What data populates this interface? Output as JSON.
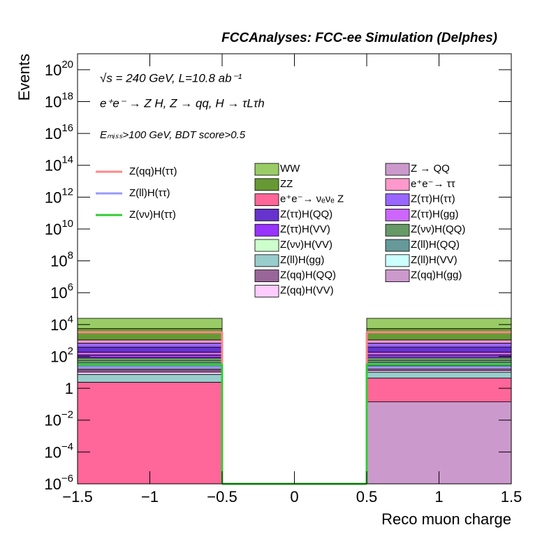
{
  "chart_data": {
    "type": "histogram",
    "title": "FCCAnalyses: FCC-ee Simulation (Delphes)",
    "x_label": "Reco muon charge",
    "y_label": "Events",
    "annotations": [
      "√s = 240 GeV, L=10.8 ab⁻¹",
      "e⁺e⁻ → Z H, Z → qq, H → τLτh",
      "Eₘᵢₛₛ>100 GeV, BDT score>0.5"
    ],
    "log_y": true,
    "bins": [
      -1.5,
      -0.5,
      0.5,
      1.5
    ],
    "xlim": [
      -1.5,
      1.5
    ],
    "xticks": [
      {
        "value": -1.5,
        "label": "−1.5"
      },
      {
        "value": -1,
        "label": "−1"
      },
      {
        "value": -0.5,
        "label": "−0.5"
      },
      0,
      0.5,
      1,
      1.5
    ],
    "ylim": [
      1e-06,
      1e+21
    ],
    "yticks": [
      {
        "value": 1e-06,
        "label": "10",
        "exponent": "−6"
      },
      {
        "value": 0.0001,
        "label": "10",
        "exponent": "−4"
      },
      {
        "value": 0.01,
        "label": "10",
        "exponent": "−2"
      },
      1,
      {
        "value": 100,
        "label": "10",
        "exponent": "2"
      },
      {
        "value": 10000.0,
        "label": "10",
        "exponent": "4"
      },
      {
        "value": 1000000.0,
        "label": "10",
        "exponent": "6"
      },
      {
        "value": 100000000.0,
        "label": "10",
        "exponent": "8"
      },
      {
        "value": 10000000000.0,
        "label": "10",
        "exponent": "10"
      },
      {
        "value": 1000000000000.0,
        "label": "10",
        "exponent": "12"
      },
      {
        "value": 100000000000000.0,
        "label": "10",
        "exponent": "14"
      },
      {
        "value": 1e+16,
        "label": "10",
        "exponent": "16"
      },
      {
        "value": 1e+18,
        "label": "10",
        "exponent": "18"
      },
      {
        "value": 1e+20,
        "label": "10",
        "exponent": "20"
      }
    ],
    "stacked": true,
    "series": [
      {
        "name": "Z → QQ",
        "color": "#cc99cc",
        "values": [
          0,
          0,
          0.14
        ]
      },
      {
        "name": "e⁺e⁻→ νₑνₑ Z",
        "color": "#ff6699",
        "values": [
          2.4,
          0,
          4.2
        ]
      },
      {
        "name": "Z(ll)H(gg)",
        "color": "#99cccc",
        "values": [
          5,
          0,
          6
        ]
      },
      {
        "name": "Z(qq)H(VV)",
        "color": "#ffccff",
        "values": [
          3,
          0,
          3
        ]
      },
      {
        "name": "Z(qq)H(QQ)",
        "color": "#996699",
        "values": [
          4,
          0,
          4
        ]
      },
      {
        "name": "Z(qq)H(gg)",
        "color": "#cc99cc",
        "values": [
          3,
          0,
          3
        ]
      },
      {
        "name": "Z(ll)H(VV)",
        "color": "#ccffff",
        "values": [
          5,
          0,
          5
        ]
      },
      {
        "name": "Z(ll)H(QQ)",
        "color": "#669999",
        "values": [
          20,
          0,
          20
        ]
      },
      {
        "name": "Z(νν)H(VV)",
        "color": "#ccffcc",
        "values": [
          10,
          0,
          10
        ]
      },
      {
        "name": "Z(νν)H(QQ)",
        "color": "#669966",
        "values": [
          30,
          0,
          30
        ]
      },
      {
        "name": "Z(ττ)H(VV)",
        "color": "#9933ff",
        "values": [
          40,
          0,
          40
        ]
      },
      {
        "name": "Z(ττ)H(gg)",
        "color": "#cc66ff",
        "values": [
          60,
          0,
          60
        ]
      },
      {
        "name": "Z(ττ)H(QQ)",
        "color": "#6633cc",
        "values": [
          200,
          0,
          200
        ]
      },
      {
        "name": "Z(ττ)H(ττ)",
        "color": "#9966ff",
        "values": [
          300,
          0,
          300
        ]
      },
      {
        "name": "e⁺e⁻→ ττ",
        "color": "#ff99cc",
        "values": [
          400,
          0,
          400
        ]
      },
      {
        "name": "ZZ",
        "color": "#669933",
        "values": [
          4500,
          0,
          4500
        ]
      },
      {
        "name": "WW",
        "color": "#99cc66",
        "values": [
          19000,
          0,
          19000
        ]
      }
    ],
    "signals": [
      {
        "name": "Z(qq)H(ττ)",
        "color": "#ff8888",
        "values": [
          3300,
          0,
          3300
        ]
      },
      {
        "name": "Z(ll)H(ττ)",
        "color": "#9999ff",
        "values": [
          20,
          0,
          20
        ]
      },
      {
        "name": "Z(νν)H(ττ)",
        "color": "#33cc33",
        "values": [
          32,
          0,
          32
        ]
      }
    ]
  }
}
